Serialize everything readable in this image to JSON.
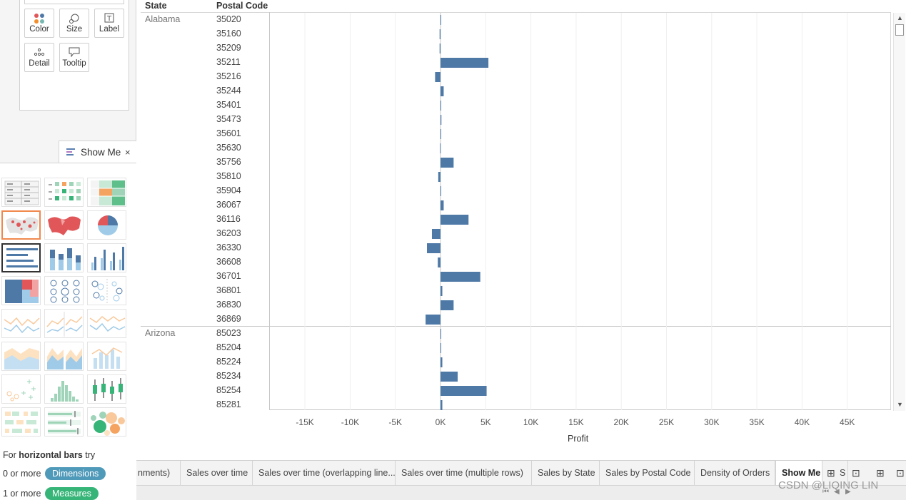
{
  "marks": {
    "buttons": [
      {
        "label": "Color",
        "icon": "color-dots-icon"
      },
      {
        "label": "Size",
        "icon": "size-icon"
      },
      {
        "label": "Label",
        "icon": "label-icon"
      },
      {
        "label": "Detail",
        "icon": "detail-dots-icon"
      },
      {
        "label": "Tooltip",
        "icon": "tooltip-icon"
      }
    ]
  },
  "showme": {
    "title": "Show Me",
    "close": "×",
    "hint_prefix": "For ",
    "hint_bold": "horizontal bars",
    "hint_suffix": " try",
    "dim_prefix": "0 or more",
    "dim_label": "Dimensions",
    "mea_prefix": "1 or more",
    "mea_label": "Measures"
  },
  "view": {
    "col_headers": [
      "State",
      "Postal Code"
    ],
    "axis_title": "Profit",
    "tick_labels": [
      "-15K",
      "-10K",
      "-5K",
      "0K",
      "5K",
      "10K",
      "15K",
      "20K",
      "25K",
      "30K",
      "35K",
      "40K",
      "45K"
    ]
  },
  "chart_data": {
    "type": "bar",
    "orientation": "horizontal",
    "xlabel": "Profit",
    "xlim": [
      -18000,
      48000
    ],
    "groups": [
      {
        "state": "Alabama",
        "rows": [
          {
            "postal": "35020",
            "value": 50
          },
          {
            "postal": "35160",
            "value": -100
          },
          {
            "postal": "35209",
            "value": -100
          },
          {
            "postal": "35211",
            "value": 5300
          },
          {
            "postal": "35216",
            "value": -600
          },
          {
            "postal": "35244",
            "value": 350
          },
          {
            "postal": "35401",
            "value": 20
          },
          {
            "postal": "35473",
            "value": 100
          },
          {
            "postal": "35601",
            "value": 50
          },
          {
            "postal": "35630",
            "value": -50
          },
          {
            "postal": "35756",
            "value": 1450
          },
          {
            "postal": "35810",
            "value": -250
          },
          {
            "postal": "35904",
            "value": 50
          },
          {
            "postal": "36067",
            "value": 350
          },
          {
            "postal": "36116",
            "value": 3100
          },
          {
            "postal": "36203",
            "value": -950
          },
          {
            "postal": "36330",
            "value": -1500
          },
          {
            "postal": "36608",
            "value": -300
          },
          {
            "postal": "36701",
            "value": 4400
          },
          {
            "postal": "36801",
            "value": 200
          },
          {
            "postal": "36830",
            "value": 1450
          },
          {
            "postal": "36869",
            "value": -1650
          }
        ]
      },
      {
        "state": "Arizona",
        "rows": [
          {
            "postal": "85023",
            "value": 50
          },
          {
            "postal": "85204",
            "value": 30
          },
          {
            "postal": "85224",
            "value": 200
          },
          {
            "postal": "85234",
            "value": 1900
          },
          {
            "postal": "85254",
            "value": 5100
          },
          {
            "postal": "85281",
            "value": 200
          }
        ]
      }
    ],
    "bar_color": "#4e79a7",
    "grid": true
  },
  "tabs": [
    "nments)",
    "Sales over time",
    "Sales over time (overlapping line...",
    "Sales over time (multiple rows)",
    "Sales by State",
    "Sales by Postal Code",
    "Density of Orders",
    "Show Me",
    "S"
  ],
  "watermark": "CSDN @LIQING LIN"
}
